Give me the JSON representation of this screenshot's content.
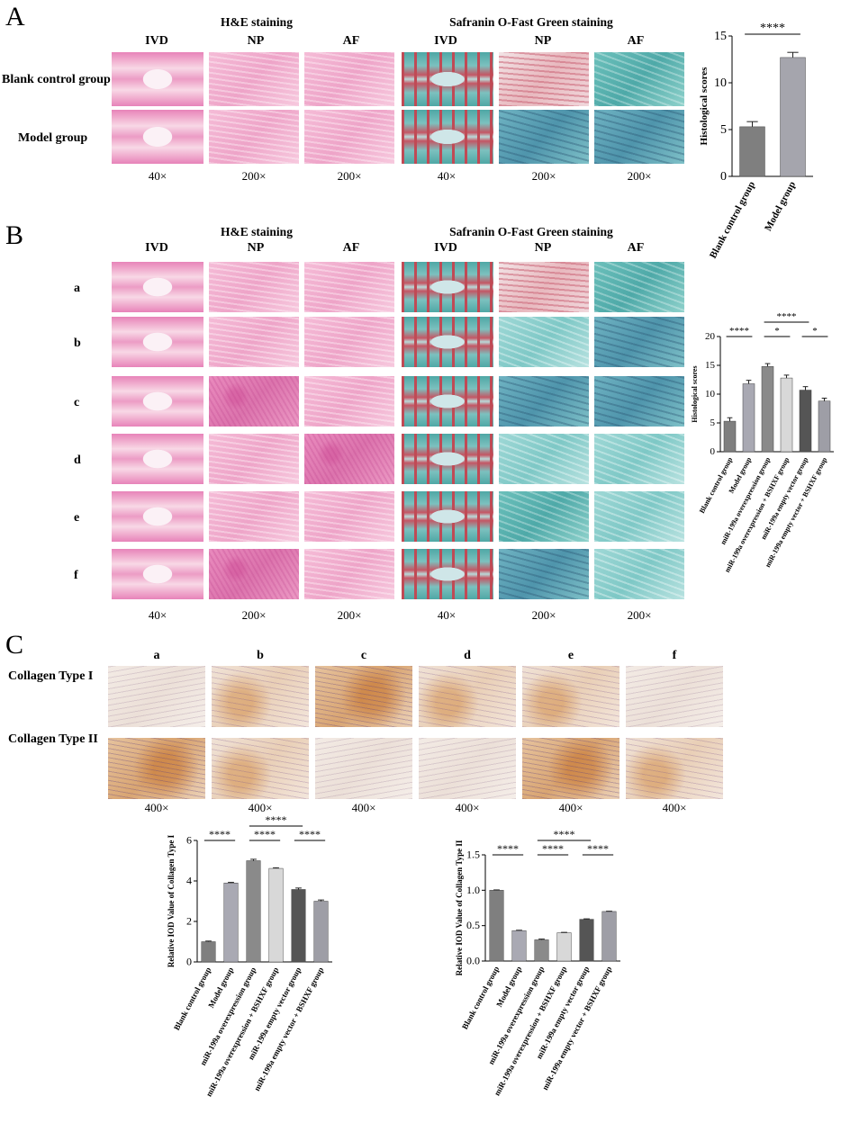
{
  "panelA": {
    "letter": "A",
    "he_title": "H&E staining",
    "so_title": "Safranin O-Fast Green staining",
    "cols": [
      "IVD",
      "NP",
      "AF"
    ],
    "rows": [
      "Blank control group",
      "Model group"
    ],
    "mags": [
      "40×",
      "200×",
      "200×",
      "40×",
      "200×",
      "200×"
    ]
  },
  "panelB": {
    "letter": "B",
    "he_title": "H&E staining",
    "so_title": "Safranin O-Fast Green staining",
    "cols": [
      "IVD",
      "NP",
      "AF"
    ],
    "rows": [
      "a",
      "b",
      "c",
      "d",
      "e",
      "f"
    ],
    "mags": [
      "40×",
      "200×",
      "200×",
      "40×",
      "200×",
      "200×"
    ]
  },
  "panelC": {
    "letter": "C",
    "cols": [
      "a",
      "b",
      "c",
      "d",
      "e",
      "f"
    ],
    "rows": [
      "Collagen Type I",
      "Collagen Type II"
    ],
    "mags": [
      "400×",
      "400×",
      "400×",
      "400×",
      "400×",
      "400×"
    ]
  },
  "chart_data": [
    {
      "type": "bar",
      "panel": "A",
      "ylabel": "Histological scores",
      "ylim": [
        0,
        15
      ],
      "yticks": [
        0,
        5,
        10,
        15
      ],
      "categories": [
        "Blank control group",
        "Model group"
      ],
      "values": [
        5.3,
        12.7
      ],
      "errors": [
        0.55,
        0.55
      ],
      "colors": [
        "#7f7f7f",
        "#a5a5ad"
      ],
      "significance": [
        {
          "from": 0,
          "to": 1,
          "label": "****",
          "level": 1
        }
      ]
    },
    {
      "type": "bar",
      "panel": "B",
      "ylabel": "Histological scores",
      "ylim": [
        0,
        20
      ],
      "yticks": [
        0,
        5,
        10,
        15,
        20
      ],
      "categories": [
        "Blank control group",
        "Model group",
        "miR-199a overexpression group",
        "miR-199a overexpression + BSHXF group",
        "miR-199a empty vector group",
        "miR-199a empty vector + BSHXF group"
      ],
      "values": [
        5.3,
        11.8,
        14.8,
        12.8,
        10.7,
        8.8
      ],
      "errors": [
        0.6,
        0.6,
        0.5,
        0.5,
        0.6,
        0.5
      ],
      "colors": [
        "#7f7f7f",
        "#a9a9b3",
        "#8a8a8a",
        "#d8d8d8",
        "#555555",
        "#9e9ea6"
      ],
      "significance": [
        {
          "from": 0,
          "to": 1,
          "label": "****",
          "level": 1
        },
        {
          "from": 2,
          "to": 3,
          "label": "*",
          "level": 1
        },
        {
          "from": 4,
          "to": 5,
          "label": "*",
          "level": 1
        },
        {
          "from": 2,
          "to": 4,
          "label": "****",
          "level": 2
        }
      ]
    },
    {
      "type": "bar",
      "panel": "C-left",
      "ylabel": "Relative IOD Value of Collagen Type I",
      "ylim": [
        0,
        6
      ],
      "yticks": [
        0,
        2,
        4,
        6
      ],
      "categories": [
        "Blank control group",
        "Model group",
        "miR-199a overexpression group",
        "miR-199a overexpression + BSHXF group",
        "miR-199a empty vector group",
        "miR-199a empty vector + BSHXF group"
      ],
      "values": [
        1.0,
        3.9,
        5.0,
        4.62,
        3.58,
        3.0
      ],
      "errors": [
        0.03,
        0.03,
        0.07,
        0.03,
        0.07,
        0.06
      ],
      "colors": [
        "#7f7f7f",
        "#a9a9b3",
        "#8a8a8a",
        "#d8d8d8",
        "#555555",
        "#9e9ea6"
      ],
      "significance": [
        {
          "from": 0,
          "to": 1,
          "label": "****",
          "level": 1
        },
        {
          "from": 2,
          "to": 3,
          "label": "****",
          "level": 1
        },
        {
          "from": 4,
          "to": 5,
          "label": "****",
          "level": 1
        },
        {
          "from": 2,
          "to": 4,
          "label": "****",
          "level": 2
        }
      ]
    },
    {
      "type": "bar",
      "panel": "C-right",
      "ylabel": "Relative IOD Value of Collagen Type II",
      "ylim": [
        0,
        1.5
      ],
      "yticks": [
        0.0,
        0.5,
        1.0,
        1.5
      ],
      "tickFormat": 1,
      "categories": [
        "Blank control group",
        "Model group",
        "miR-199a overexpression group",
        "miR-199a overexpression + BSHXF group",
        "miR-199a empty vector group",
        "miR-199a empty vector + BSHXF group"
      ],
      "values": [
        1.0,
        0.43,
        0.3,
        0.4,
        0.59,
        0.7
      ],
      "errors": [
        0.005,
        0.005,
        0.01,
        0.005,
        0.006,
        0.004
      ],
      "colors": [
        "#7f7f7f",
        "#a9a9b3",
        "#8a8a8a",
        "#d8d8d8",
        "#555555",
        "#9e9ea6"
      ],
      "significance": [
        {
          "from": 0,
          "to": 1,
          "label": "****",
          "level": 1
        },
        {
          "from": 2,
          "to": 3,
          "label": "****",
          "level": 1
        },
        {
          "from": 4,
          "to": 5,
          "label": "****",
          "level": 1
        },
        {
          "from": 2,
          "to": 4,
          "label": "****",
          "level": 2
        }
      ]
    }
  ]
}
